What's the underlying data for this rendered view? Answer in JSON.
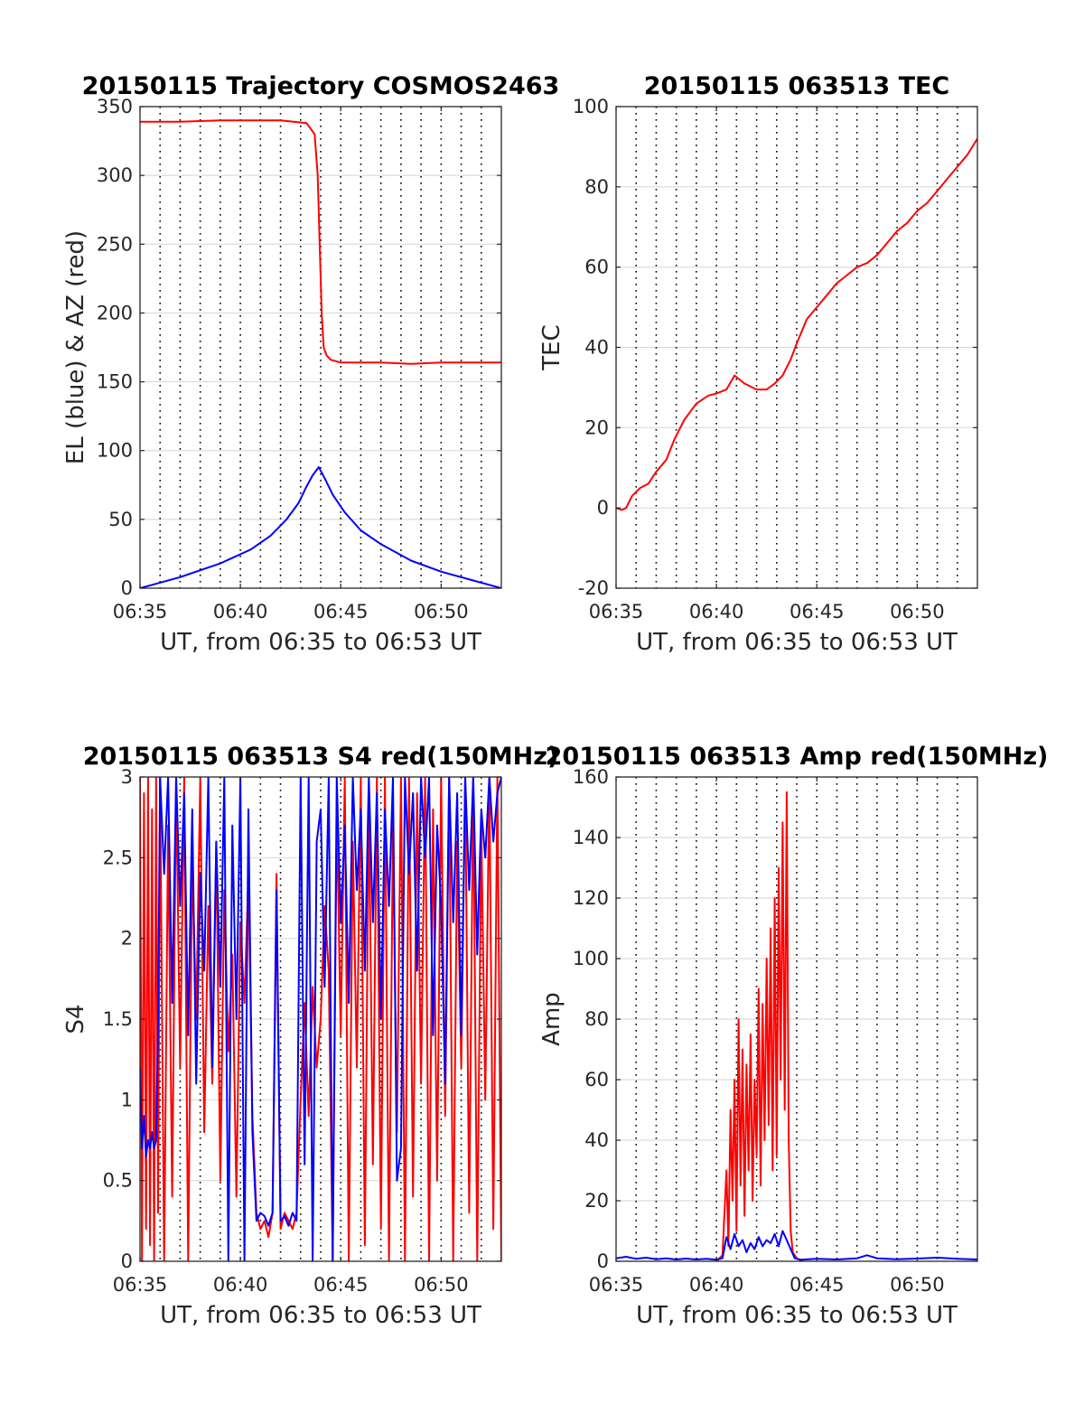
{
  "chart_data": [
    {
      "type": "line",
      "title": "20150115 Trajectory COSMOS2463",
      "xlabel": "UT, from 06:35 to 06:53 UT",
      "ylabel": "EL (blue) & AZ (red)",
      "xlim": [
        0,
        18
      ],
      "ylim": [
        0,
        350
      ],
      "xticks": [
        0,
        5,
        10,
        15
      ],
      "xtick_labels": [
        "06:35",
        "06:40",
        "06:45",
        "06:50"
      ],
      "yticks": [
        0,
        50,
        100,
        150,
        200,
        250,
        300,
        350
      ],
      "ytick_labels": [
        "0",
        "50",
        "100",
        "150",
        "200",
        "250",
        "300",
        "350"
      ],
      "grid": true,
      "series": [
        {
          "color": "#ff0000",
          "x": [
            0.0,
            2.0,
            4.0,
            7.0,
            8.3,
            8.7,
            8.85,
            8.95,
            9.05,
            9.15,
            9.3,
            9.5,
            10.0,
            12.0,
            13.5,
            15.0,
            18.0
          ],
          "y": [
            339,
            339,
            340,
            340,
            338,
            330,
            300,
            250,
            200,
            175,
            169,
            166,
            164,
            164,
            163,
            164,
            164
          ]
        },
        {
          "color": "#0000ff",
          "x": [
            0.0,
            2.0,
            4.0,
            5.5,
            6.5,
            7.3,
            7.9,
            8.3,
            8.6,
            8.9,
            9.2,
            9.6,
            10.2,
            11.0,
            12.0,
            13.5,
            15.0,
            16.5,
            18.0
          ],
          "y": [
            0,
            8,
            18,
            28,
            38,
            50,
            62,
            74,
            82,
            88,
            80,
            68,
            55,
            42,
            32,
            20,
            12,
            6,
            0
          ]
        }
      ]
    },
    {
      "type": "line",
      "title": "20150115 063513 TEC",
      "xlabel": "UT, from 06:35 to 06:53 UT",
      "ylabel": "TEC",
      "xlim": [
        0,
        18
      ],
      "ylim": [
        -20,
        100
      ],
      "xticks": [
        0,
        5,
        10,
        15
      ],
      "xtick_labels": [
        "06:35",
        "06:40",
        "06:45",
        "06:50"
      ],
      "yticks": [
        -20,
        0,
        20,
        40,
        60,
        80,
        100
      ],
      "ytick_labels": [
        "-20",
        "0",
        "20",
        "40",
        "60",
        "80",
        "100"
      ],
      "grid": true,
      "series": [
        {
          "color": "#ff0000",
          "x": [
            0.0,
            0.3,
            0.5,
            0.8,
            1.2,
            1.6,
            2.0,
            2.5,
            2.9,
            3.4,
            4.0,
            4.6,
            5.0,
            5.5,
            5.9,
            6.4,
            7.0,
            7.5,
            7.9,
            8.3,
            8.7,
            9.0,
            9.5,
            10.0,
            10.5,
            11.0,
            11.5,
            12.0,
            12.5,
            13.0,
            13.5,
            14.0,
            14.5,
            15.0,
            15.5,
            16.0,
            16.5,
            17.0,
            17.5,
            18.0
          ],
          "y": [
            0,
            -0.5,
            0,
            3,
            5,
            6,
            9,
            12,
            17,
            22,
            26,
            28,
            28.5,
            29.5,
            33,
            31,
            29.5,
            29.5,
            31,
            33,
            37,
            41,
            47,
            50,
            53,
            56,
            58,
            60,
            61,
            63,
            66,
            69,
            71,
            74,
            76,
            79,
            82,
            85,
            88,
            92
          ]
        }
      ]
    },
    {
      "type": "line",
      "title": "20150115 063513 S4 red(150MHz)",
      "xlabel": "UT, from 06:35 to 06:53 UT",
      "ylabel": "S4",
      "xlim": [
        0,
        18
      ],
      "ylim": [
        0,
        3
      ],
      "xticks": [
        0,
        5,
        10,
        15
      ],
      "xtick_labels": [
        "06:35",
        "06:40",
        "06:45",
        "06:50"
      ],
      "yticks": [
        0,
        0.5,
        1,
        1.5,
        2,
        2.5,
        3
      ],
      "ytick_labels": [
        "0",
        "0.5",
        "1",
        "1.5",
        "2",
        "2.5",
        "3"
      ],
      "grid": true,
      "series": [
        {
          "color": "#ff0000",
          "x": [
            0.0,
            0.1,
            0.2,
            0.3,
            0.4,
            0.5,
            0.6,
            0.7,
            0.8,
            0.9,
            1.0,
            1.2,
            1.4,
            1.6,
            1.8,
            2.0,
            2.2,
            2.4,
            2.6,
            2.8,
            3.0,
            3.2,
            3.4,
            3.6,
            3.8,
            4.0,
            4.2,
            4.4,
            4.6,
            4.8,
            5.0,
            5.2,
            5.4,
            5.6,
            5.8,
            6.0,
            6.2,
            6.4,
            6.6,
            6.8,
            7.0,
            7.2,
            7.4,
            7.6,
            7.8,
            8.0,
            8.2,
            8.4,
            8.6,
            8.8,
            9.0,
            9.2,
            9.4,
            9.6,
            9.8,
            10.0,
            10.2,
            10.4,
            10.6,
            10.8,
            11.0,
            11.2,
            11.4,
            11.6,
            11.8,
            12.0,
            12.2,
            12.4,
            12.6,
            12.8,
            13.0,
            13.2,
            13.4,
            13.6,
            13.8,
            14.0,
            14.2,
            14.4,
            14.6,
            14.8,
            15.0,
            15.2,
            15.4,
            15.6,
            15.8,
            16.0,
            16.2,
            16.4,
            16.6,
            16.8,
            17.0,
            17.2,
            17.4,
            17.6,
            17.8,
            18.0
          ],
          "y": [
            3,
            0,
            2.9,
            0.2,
            3,
            0.1,
            2.8,
            0,
            3,
            0.3,
            3,
            0,
            2.7,
            0.4,
            3,
            1.2,
            3,
            0,
            2.5,
            1.5,
            3,
            0.8,
            2.2,
            1.1,
            2.6,
            0.5,
            2.3,
            1.3,
            1.9,
            0.4,
            2.1,
            1.6,
            2.4,
            0.9,
            0.3,
            0.2,
            0.25,
            0.15,
            0.3,
            2.4,
            0.2,
            0.3,
            0.25,
            0.2,
            0.3,
            1,
            1.6,
            0.9,
            1.7,
            1.2,
            1.5,
            2.2,
            1.8,
            0,
            2.8,
            1.4,
            3,
            0,
            2.6,
            1.2,
            3,
            0.1,
            2.9,
            0.6,
            3,
            0.2,
            3,
            0,
            2.7,
            0.8,
            3,
            0,
            3,
            0.4,
            2.9,
            1.1,
            3,
            0,
            2.8,
            0.5,
            3,
            0.9,
            3,
            0,
            2.6,
            1.2,
            3,
            0.3,
            3,
            0,
            2.7,
            1,
            3,
            0.2,
            3,
            0
          ]
        },
        {
          "color": "#0000ff",
          "x": [
            0.0,
            0.1,
            0.2,
            0.3,
            0.4,
            0.5,
            0.6,
            0.7,
            0.8,
            0.9,
            1.0,
            1.2,
            1.4,
            1.6,
            1.8,
            2.0,
            2.2,
            2.4,
            2.6,
            2.8,
            3.0,
            3.2,
            3.4,
            3.6,
            3.8,
            4.0,
            4.2,
            4.4,
            4.6,
            4.8,
            5.0,
            5.2,
            5.4,
            5.6,
            5.8,
            6.0,
            6.2,
            6.4,
            6.6,
            6.8,
            7.0,
            7.2,
            7.4,
            7.6,
            7.8,
            8.0,
            8.2,
            8.4,
            8.6,
            8.8,
            9.0,
            9.2,
            9.4,
            9.6,
            9.8,
            10.0,
            10.2,
            10.4,
            10.6,
            10.8,
            11.0,
            11.2,
            11.4,
            11.6,
            11.8,
            12.0,
            12.2,
            12.4,
            12.6,
            12.8,
            13.0,
            13.2,
            13.4,
            13.6,
            13.8,
            14.0,
            14.2,
            14.4,
            14.6,
            14.8,
            15.0,
            15.2,
            15.4,
            15.6,
            15.8,
            16.0,
            16.2,
            16.4,
            16.6,
            16.8,
            17.0,
            17.2,
            17.4,
            17.6,
            17.8,
            18.0
          ],
          "y": [
            1.2,
            0.7,
            0.9,
            0.65,
            0.75,
            0.7,
            0.8,
            0.7,
            0.75,
            1.5,
            3,
            2.4,
            3,
            1.6,
            3,
            2.2,
            2.9,
            1.4,
            2.8,
            1.1,
            2.4,
            1.8,
            3,
            1.2,
            2.6,
            1.7,
            3,
            0,
            2.7,
            1.5,
            3,
            0,
            2.8,
            0.8,
            0.25,
            0.3,
            0.28,
            0.22,
            0.3,
            2.3,
            0.25,
            0.28,
            0.22,
            0.3,
            0.25,
            3,
            0.6,
            3,
            0,
            2.6,
            2.8,
            1.7,
            3,
            0,
            3,
            2.1,
            2.7,
            1.6,
            3,
            2.3,
            2.8,
            1.8,
            3,
            2.1,
            2.9,
            1.5,
            2.8,
            2.2,
            3,
            0.5,
            0.7,
            3,
            2.4,
            2.9,
            1.8,
            3,
            2.5,
            3,
            1.4,
            2.7,
            2.2,
            1.1,
            3,
            2.1,
            2.9,
            1.4,
            3,
            2.3,
            3,
            1.9,
            2.8,
            2.5,
            3,
            2.6,
            2.9,
            3
          ]
        }
      ]
    },
    {
      "type": "line",
      "title": "20150115 063513 Amp red(150MHz)",
      "xlabel": "UT, from 06:35 to 06:53 UT",
      "ylabel": "Amp",
      "xlim": [
        0,
        18
      ],
      "ylim": [
        0,
        160
      ],
      "xticks": [
        0,
        5,
        10,
        15
      ],
      "xtick_labels": [
        "06:35",
        "06:40",
        "06:45",
        "06:50"
      ],
      "yticks": [
        0,
        20,
        40,
        60,
        80,
        100,
        120,
        140,
        160
      ],
      "ytick_labels": [
        "0",
        "20",
        "40",
        "60",
        "80",
        "100",
        "120",
        "140",
        "160"
      ],
      "grid": true,
      "series": [
        {
          "color": "#ff0000",
          "x": [
            5.0,
            5.3,
            5.5,
            5.6,
            5.7,
            5.8,
            5.9,
            6.0,
            6.1,
            6.2,
            6.3,
            6.4,
            6.5,
            6.6,
            6.7,
            6.8,
            6.9,
            7.0,
            7.1,
            7.2,
            7.3,
            7.4,
            7.5,
            7.6,
            7.7,
            7.8,
            7.9,
            8.0,
            8.1,
            8.2,
            8.3,
            8.4,
            8.5,
            8.6,
            8.7,
            8.8,
            9.0,
            9.3
          ],
          "y": [
            0,
            2,
            30,
            5,
            50,
            20,
            60,
            10,
            80,
            25,
            70,
            15,
            65,
            30,
            75,
            20,
            60,
            35,
            90,
            25,
            85,
            40,
            100,
            45,
            110,
            30,
            120,
            35,
            130,
            60,
            145,
            50,
            155,
            40,
            10,
            3,
            1,
            0
          ]
        },
        {
          "color": "#0000ff",
          "x": [
            0.0,
            0.5,
            1.0,
            1.5,
            2.0,
            2.5,
            3.0,
            3.5,
            4.0,
            4.5,
            5.0,
            5.3,
            5.5,
            5.7,
            5.9,
            6.1,
            6.3,
            6.5,
            6.7,
            6.9,
            7.1,
            7.3,
            7.5,
            7.7,
            7.9,
            8.1,
            8.3,
            8.5,
            8.7,
            8.9,
            9.2,
            10.0,
            11.0,
            12.0,
            12.5,
            13.0,
            14.0,
            15.0,
            16.0,
            17.0,
            18.0
          ],
          "y": [
            1,
            1.5,
            0.8,
            1.2,
            0.7,
            1,
            0.6,
            0.9,
            0.6,
            0.8,
            0.5,
            1,
            8,
            4,
            9,
            5,
            7,
            3,
            6,
            4,
            8,
            5,
            7,
            6,
            9,
            5,
            10,
            7,
            4,
            1,
            0.5,
            0.8,
            0.6,
            1,
            2,
            1,
            0.7,
            0.9,
            1.2,
            0.8,
            0.6
          ]
        }
      ]
    }
  ]
}
